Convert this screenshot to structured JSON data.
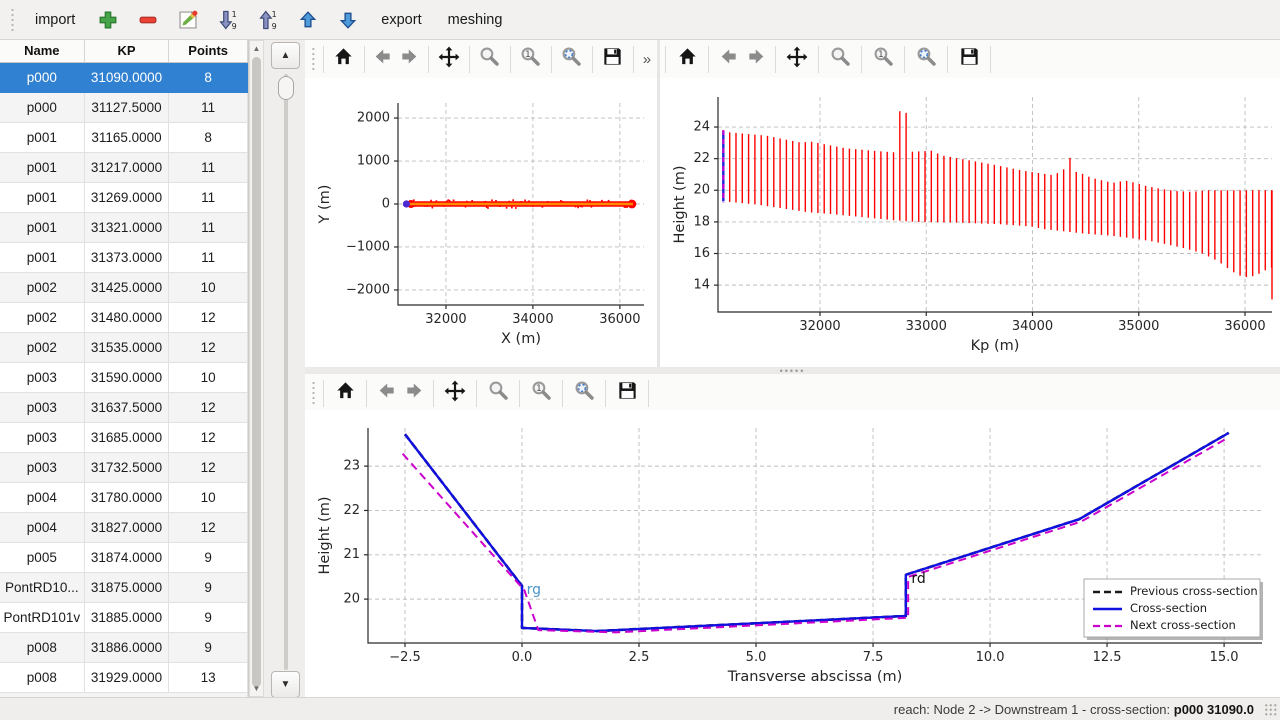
{
  "topbar": {
    "import_label": "import",
    "export_label": "export",
    "meshing_label": "meshing",
    "icon_buttons": [
      "add",
      "remove",
      "edit",
      "sort-ascending",
      "sort-descending",
      "move-up",
      "move-down"
    ]
  },
  "table": {
    "columns": [
      "Name",
      "KP",
      "Points"
    ],
    "selected_index": 0,
    "rows": [
      [
        "p000",
        "31090.0000",
        "8"
      ],
      [
        "p000",
        "31127.5000",
        "11"
      ],
      [
        "p001",
        "31165.0000",
        "8"
      ],
      [
        "p001",
        "31217.0000",
        "11"
      ],
      [
        "p001",
        "31269.0000",
        "11"
      ],
      [
        "p001",
        "31321.0000",
        "11"
      ],
      [
        "p001",
        "31373.0000",
        "11"
      ],
      [
        "p002",
        "31425.0000",
        "10"
      ],
      [
        "p002",
        "31480.0000",
        "12"
      ],
      [
        "p002",
        "31535.0000",
        "12"
      ],
      [
        "p003",
        "31590.0000",
        "10"
      ],
      [
        "p003",
        "31637.5000",
        "12"
      ],
      [
        "p003",
        "31685.0000",
        "12"
      ],
      [
        "p003",
        "31732.5000",
        "12"
      ],
      [
        "p004",
        "31780.0000",
        "10"
      ],
      [
        "p004",
        "31827.0000",
        "12"
      ],
      [
        "p005",
        "31874.0000",
        "9"
      ],
      [
        "PontRD10...",
        "31875.0000",
        "9"
      ],
      [
        "PontRD101v",
        "31885.0000",
        "9"
      ],
      [
        "p008",
        "31886.0000",
        "9"
      ],
      [
        "p008",
        "31929.0000",
        "13"
      ]
    ]
  },
  "mpl_toolbar": {
    "buttons": [
      "home",
      "back",
      "forward",
      "pan",
      "zoom",
      "zoom-one",
      "zoom-fit",
      "save"
    ],
    "overflow": "»"
  },
  "colors": {
    "selection_blue": "#3181d2",
    "plot_red": "#ff0000",
    "plot_orange": "#ff8a00",
    "cross_section_blue": "#1010e0",
    "next_section_magenta": "#cc00cc",
    "previous_section_black": "#1a1a1a",
    "rg_label_blue": "#4a93c8"
  },
  "chart_data": [
    {
      "id": "trace",
      "type": "scatter",
      "xlabel": "X (m)",
      "ylabel": "Y (m)",
      "xlim": [
        30897,
        36555
      ],
      "ylim": [
        -2350,
        2350
      ],
      "xticks": [
        32000,
        34000,
        36000
      ],
      "yticks": [
        -2000,
        -1000,
        0,
        1000,
        2000
      ],
      "grid": true,
      "band": {
        "x_start": 31150,
        "x_end": 36300,
        "y": 0,
        "outer_color": "#ff0000",
        "inner_color": "#ff8a00"
      },
      "start_marker": {
        "x": 31090,
        "y": 0,
        "color": "#4b28d0"
      }
    },
    {
      "id": "profile",
      "type": "vlines",
      "xlabel": "Kp (m)",
      "ylabel": "Height (m)",
      "xlim": [
        31040,
        36254
      ],
      "ylim": [
        12.3,
        25.9
      ],
      "xticks": [
        32000,
        33000,
        34000,
        35000,
        36000
      ],
      "yticks": [
        14,
        16,
        18,
        20,
        22,
        24
      ],
      "grid": true,
      "line_color": "#ff0000",
      "kp_first": 31150,
      "kp_last": 36250,
      "n_lines": 87,
      "top_profile": [
        [
          31090,
          23.7
        ],
        [
          31500,
          23.45
        ],
        [
          31830,
          23.0
        ],
        [
          31900,
          23.1
        ],
        [
          32050,
          22.9
        ],
        [
          32250,
          22.65
        ],
        [
          32500,
          22.5
        ],
        [
          32700,
          22.4
        ],
        [
          32900,
          22.45
        ],
        [
          33050,
          22.5
        ],
        [
          33150,
          22.2
        ],
        [
          33400,
          21.9
        ],
        [
          33650,
          21.6
        ],
        [
          33900,
          21.25
        ],
        [
          34050,
          21.1
        ],
        [
          34200,
          20.95
        ],
        [
          34300,
          21.35
        ],
        [
          34450,
          21.1
        ],
        [
          34550,
          20.8
        ],
        [
          34700,
          20.55
        ],
        [
          34800,
          20.45
        ],
        [
          34850,
          20.65
        ],
        [
          34950,
          20.5
        ],
        [
          35050,
          20.3
        ],
        [
          35200,
          20.1
        ],
        [
          35350,
          19.95
        ],
        [
          35500,
          19.9
        ],
        [
          35650,
          20.0
        ],
        [
          36250,
          20.0
        ]
      ],
      "bottom_profile": [
        [
          31090,
          19.3
        ],
        [
          31400,
          19.1
        ],
        [
          31600,
          18.9
        ],
        [
          31900,
          18.6
        ],
        [
          32100,
          18.5
        ],
        [
          32400,
          18.3
        ],
        [
          32700,
          18.1
        ],
        [
          32900,
          18.0
        ],
        [
          33300,
          17.95
        ],
        [
          33700,
          17.85
        ],
        [
          34000,
          17.7
        ],
        [
          34100,
          17.55
        ],
        [
          34300,
          17.4
        ],
        [
          34500,
          17.25
        ],
        [
          34700,
          17.15
        ],
        [
          34900,
          17.0
        ],
        [
          35100,
          16.8
        ],
        [
          35250,
          16.6
        ],
        [
          35450,
          16.3
        ],
        [
          35600,
          16.0
        ],
        [
          35750,
          15.5
        ],
        [
          35870,
          14.9
        ],
        [
          35950,
          14.6
        ],
        [
          36020,
          14.5
        ],
        [
          36100,
          14.6
        ],
        [
          36180,
          14.9
        ],
        [
          36240,
          15.1
        ]
      ],
      "spikes": [
        {
          "kp": 32780,
          "top": 25.0
        },
        {
          "kp": 32835,
          "top": 24.9
        },
        {
          "kp": 34350,
          "top": 22.05
        }
      ],
      "final_line": {
        "kp": 36254,
        "top": 20.0,
        "bottom": 13.1
      },
      "selected_section": {
        "kp": 31090,
        "top": 23.75,
        "bottom": 19.3,
        "line_color": "#2222dd",
        "overlay_color": "#cc00cc"
      }
    },
    {
      "id": "cross_section",
      "type": "line",
      "xlabel": "Transverse abscissa (m)",
      "ylabel": "Height (m)",
      "xlim": [
        -3.29,
        15.81
      ],
      "ylim": [
        19.01,
        23.86
      ],
      "xticks": [
        -2.5,
        0,
        2.5,
        5,
        7.5,
        10,
        12.5,
        15
      ],
      "xtick_decimals": 1,
      "yticks": [
        20,
        21,
        22,
        23
      ],
      "grid": true,
      "series": [
        {
          "name": "Previous cross-section",
          "color": "#1a1a1a",
          "dash": [
            7,
            4
          ],
          "width": 2.6,
          "points": [
            [
              -2.5,
              23.72
            ],
            [
              0,
              20.3
            ],
            [
              0,
              19.35
            ],
            [
              1.6,
              19.28
            ],
            [
              8.2,
              19.62
            ],
            [
              8.2,
              20.55
            ],
            [
              11.9,
              21.8
            ],
            [
              15.1,
              23.75
            ]
          ]
        },
        {
          "name": "Cross-section",
          "color": "#1010e0",
          "dash": [],
          "width": 2.4,
          "points": [
            [
              -2.5,
              23.72
            ],
            [
              0,
              20.3
            ],
            [
              0,
              19.35
            ],
            [
              1.6,
              19.28
            ],
            [
              8.2,
              19.62
            ],
            [
              8.2,
              20.55
            ],
            [
              11.9,
              21.8
            ],
            [
              15.1,
              23.75
            ]
          ]
        },
        {
          "name": "Next cross-section",
          "color": "#cc00cc",
          "dash": [
            8,
            5
          ],
          "width": 2.0,
          "points": [
            [
              -2.55,
              23.28
            ],
            [
              0.05,
              20.2
            ],
            [
              0.35,
              19.3
            ],
            [
              2.0,
              19.25
            ],
            [
              8.25,
              19.58
            ],
            [
              8.25,
              20.5
            ],
            [
              11.95,
              21.75
            ],
            [
              15.05,
              23.62
            ]
          ]
        }
      ],
      "annotations": [
        {
          "text": "rg",
          "x": 0.1,
          "y": 20.2,
          "color": "#4a93c8"
        },
        {
          "text": "rd",
          "x": 8.32,
          "y": 20.45,
          "color": "#111111"
        }
      ],
      "legend": {
        "position": "lower right"
      }
    }
  ],
  "statusbar": {
    "reach_label": "reach: Node 2 -> Downstream 1 - cross-section: ",
    "section": "p000 31090.0"
  }
}
